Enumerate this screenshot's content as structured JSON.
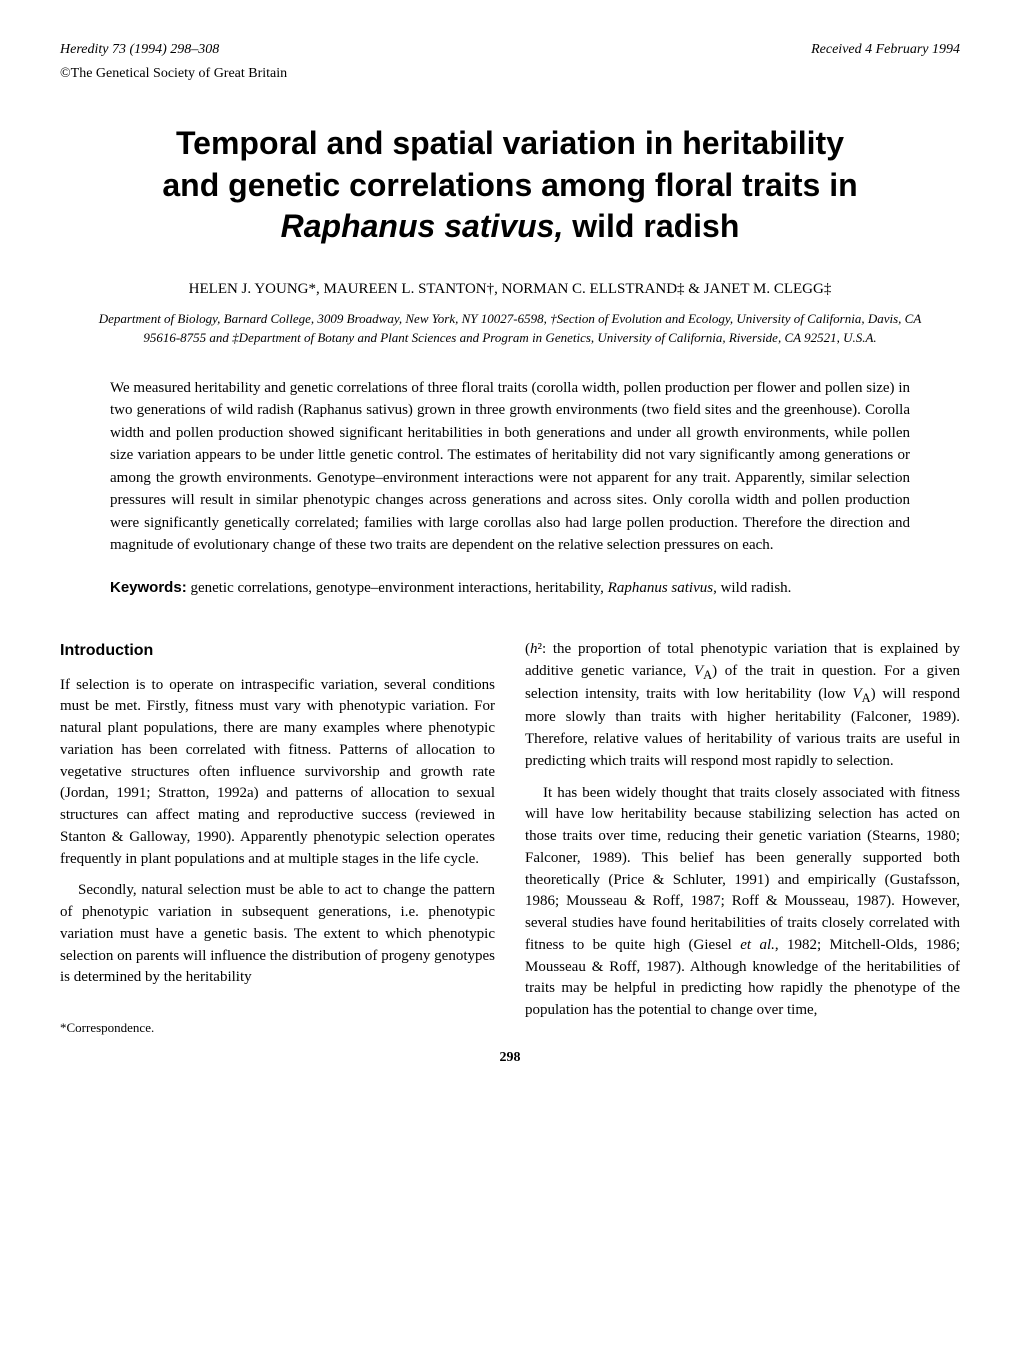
{
  "header": {
    "journal_ref": "Heredity 73 (1994) 298–308",
    "received": "Received 4 February 1994",
    "copyright": "©The Genetical Society of Great Britain"
  },
  "title": {
    "line1": "Temporal and spatial variation in heritability",
    "line2": "and genetic correlations among floral traits in",
    "species": "Raphanus sativus,",
    "line3_end": " wild radish"
  },
  "authors": "HELEN J. YOUNG*, MAUREEN L. STANTON†, NORMAN C. ELLSTRAND‡ & JANET M. CLEGG‡",
  "affiliations": "Department of Biology, Barnard College, 3009 Broadway, New York, NY 10027-6598, †Section of Evolution and Ecology, University of California, Davis, CA 95616-8755 and ‡Department of Botany and Plant Sciences and Program in Genetics, University of California, Riverside, CA 92521, U.S.A.",
  "abstract": "We measured heritability and genetic correlations of three floral traits (corolla width, pollen production per flower and pollen size) in two generations of wild radish (Raphanus sativus) grown in three growth environments (two field sites and the greenhouse). Corolla width and pollen production showed significant heritabilities in both generations and under all growth environments, while pollen size variation appears to be under little genetic control. The estimates of heritability did not vary significantly among generations or among the growth environments. Genotype–environment interactions were not apparent for any trait. Apparently, similar selection pressures will result in similar phenotypic changes across generations and across sites. Only corolla width and pollen production were significantly genetically correlated; families with large corollas also had large pollen production. Therefore the direction and magnitude of evolutionary change of these two traits are dependent on the relative selection pressures on each.",
  "keywords": {
    "label": "Keywords:",
    "text": " genetic correlations, genotype–environment interactions, heritability, Raphanus sativus, wild radish."
  },
  "intro_heading": "Introduction",
  "col1": {
    "p1": "If selection is to operate on intraspecific variation, several conditions must be met. Firstly, fitness must vary with phenotypic variation. For natural plant populations, there are many examples where phenotypic variation has been correlated with fitness. Patterns of allocation to vegetative structures often influence survivorship and growth rate (Jordan, 1991; Stratton, 1992a) and patterns of allocation to sexual structures can affect mating and reproductive success (reviewed in Stanton & Galloway, 1990). Apparently phenotypic selection operates frequently in plant populations and at multiple stages in the life cycle.",
    "p2": "Secondly, natural selection must be able to act to change the pattern of phenotypic variation in subsequent generations, i.e. phenotypic variation must have a genetic basis. The extent to which phenotypic selection on parents will influence the distribution of progeny genotypes is determined by the heritability"
  },
  "col2": {
    "p1": "(h²: the proportion of total phenotypic variation that is explained by additive genetic variance, Vₐ) of the trait in question. For a given selection intensity, traits with low heritability (low Vₐ) will respond more slowly than traits with higher heritability (Falconer, 1989). Therefore, relative values of heritability of various traits are useful in predicting which traits will respond most rapidly to selection.",
    "p2": "It has been widely thought that traits closely associated with fitness will have low heritability because stabilizing selection has acted on those traits over time, reducing their genetic variation (Stearns, 1980; Falconer, 1989). This belief has been generally supported both theoretically (Price & Schluter, 1991) and empirically (Gustafsson, 1986; Mousseau & Roff, 1987; Roff & Mousseau, 1987). However, several studies have found heritabilities of traits closely correlated with fitness to be quite high (Giesel et al., 1982; Mitchell-Olds, 1986; Mousseau & Roff, 1987). Although knowledge of the heritabilities of traits may be helpful in predicting how rapidly the phenotype of the population has the potential to change over time,"
  },
  "correspondence": "*Correspondence.",
  "page_number": "298"
}
